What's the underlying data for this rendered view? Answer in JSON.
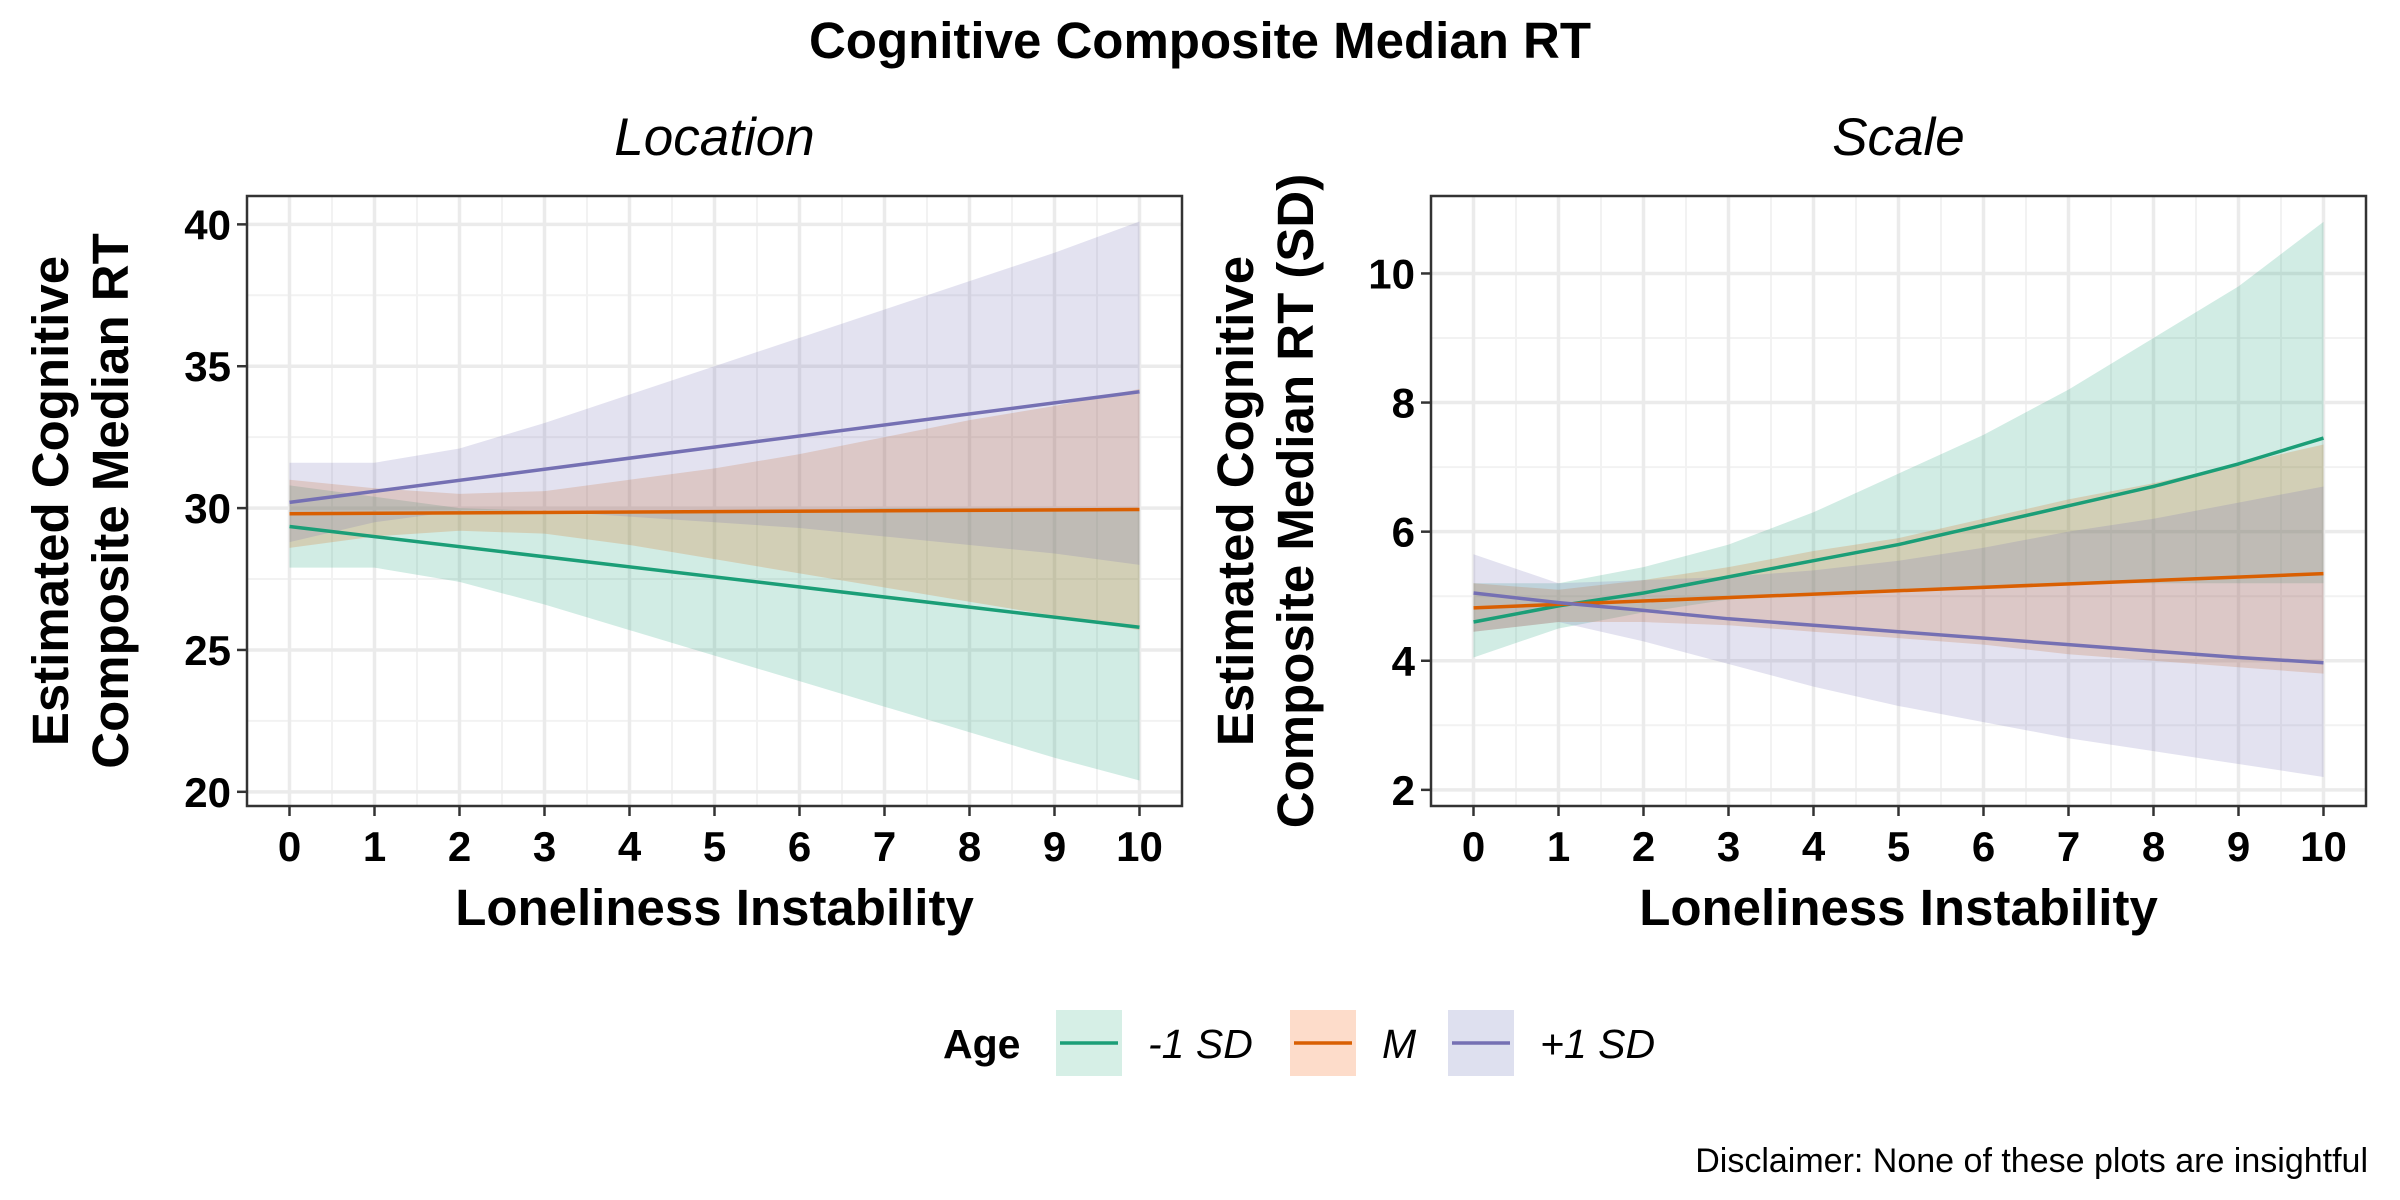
{
  "title": "Cognitive Composite Median RT",
  "caption": "Disclaimer: None of these plots are insightful",
  "legend": {
    "title": "Age",
    "position": "bottom",
    "entries": [
      {
        "label": "-1 SD",
        "line_color": "#1B9E77",
        "fill_color": "#D6EFE6"
      },
      {
        "label": "M",
        "line_color": "#D95F02",
        "fill_color": "#FDDCCA"
      },
      {
        "label": "+1 SD",
        "line_color": "#7570B3",
        "fill_color": "#DEE0EF"
      }
    ]
  },
  "chart_data": [
    {
      "type": "line",
      "facet": "Location",
      "xlabel": "Loneliness Instability",
      "ylabel_lines": [
        "Estimated Cognitive",
        "Composite Median RT"
      ],
      "xlim": [
        -0.5,
        10.5
      ],
      "ylim": [
        19.5,
        41.0
      ],
      "xticks": [
        0,
        1,
        2,
        3,
        4,
        5,
        6,
        7,
        8,
        9,
        10
      ],
      "yticks": [
        20,
        25,
        30,
        35,
        40
      ],
      "grid": true,
      "series": [
        {
          "name": "-1 SD",
          "x": [
            0,
            10
          ],
          "y": [
            29.35,
            25.8
          ],
          "ribbon": {
            "x": [
              0,
              1,
              2,
              3,
              4,
              5,
              6,
              7,
              8,
              9,
              10
            ],
            "lower": [
              27.9,
              27.9,
              27.4,
              26.6,
              25.7,
              24.8,
              23.9,
              23.0,
              22.1,
              21.2,
              20.4
            ],
            "upper": [
              30.8,
              30.4,
              30.0,
              29.9,
              29.9,
              29.9,
              29.9,
              30.0,
              30.0,
              30.0,
              30.0
            ]
          }
        },
        {
          "name": "M",
          "x": [
            0,
            10
          ],
          "y": [
            29.8,
            29.95
          ],
          "ribbon": {
            "x": [
              0,
              1,
              2,
              3,
              4,
              5,
              6,
              7,
              8,
              9,
              10
            ],
            "lower": [
              28.6,
              29.0,
              29.2,
              29.1,
              28.7,
              28.2,
              27.7,
              27.2,
              26.7,
              26.2,
              25.7
            ],
            "upper": [
              31.0,
              30.7,
              30.5,
              30.6,
              31.0,
              31.4,
              31.9,
              32.5,
              33.1,
              33.6,
              34.2
            ]
          }
        },
        {
          "name": "+1 SD",
          "x": [
            0,
            10
          ],
          "y": [
            30.2,
            34.1
          ],
          "ribbon": {
            "x": [
              0,
              1,
              2,
              3,
              4,
              5,
              6,
              7,
              8,
              9,
              10
            ],
            "lower": [
              28.8,
              29.5,
              29.9,
              29.9,
              29.7,
              29.5,
              29.3,
              29.0,
              28.7,
              28.4,
              28.0
            ],
            "upper": [
              31.6,
              31.6,
              32.1,
              33.0,
              34.0,
              35.0,
              36.0,
              37.0,
              38.0,
              39.0,
              40.1
            ]
          }
        }
      ]
    },
    {
      "type": "line",
      "facet": "Scale",
      "xlabel": "Loneliness Instability",
      "ylabel_lines": [
        "Estimated Cognitive",
        "Composite Median RT (SD)"
      ],
      "xlim": [
        -0.5,
        10.5
      ],
      "ylim": [
        1.75,
        11.2
      ],
      "xticks": [
        0,
        1,
        2,
        3,
        4,
        5,
        6,
        7,
        8,
        9,
        10
      ],
      "yticks": [
        2,
        4,
        6,
        8,
        10
      ],
      "grid": true,
      "series": [
        {
          "name": "-1 SD",
          "x": [
            0,
            1,
            2,
            3,
            4,
            5,
            6,
            7,
            8,
            9,
            10
          ],
          "y": [
            4.6,
            4.85,
            5.05,
            5.3,
            5.55,
            5.8,
            6.1,
            6.4,
            6.7,
            7.05,
            7.45
          ],
          "ribbon": {
            "x": [
              0,
              1,
              2,
              3,
              4,
              5,
              6,
              7,
              8,
              9,
              10
            ],
            "lower": [
              4.05,
              4.5,
              4.75,
              4.95,
              5.05,
              5.1,
              5.15,
              5.2,
              5.2,
              5.2,
              5.2
            ],
            "upper": [
              5.2,
              5.2,
              5.45,
              5.8,
              6.3,
              6.9,
              7.5,
              8.2,
              9.0,
              9.8,
              10.8
            ]
          }
        },
        {
          "name": "M",
          "x": [
            0,
            10
          ],
          "y": [
            4.82,
            5.35
          ],
          "ribbon": {
            "x": [
              0,
              1,
              2,
              3,
              4,
              5,
              6,
              7,
              8,
              9,
              10
            ],
            "lower": [
              4.45,
              4.6,
              4.6,
              4.55,
              4.45,
              4.35,
              4.25,
              4.1,
              4.0,
              3.9,
              3.8
            ],
            "upper": [
              5.2,
              5.1,
              5.25,
              5.45,
              5.7,
              5.9,
              6.2,
              6.5,
              6.75,
              7.05,
              7.35
            ]
          }
        },
        {
          "name": "+1 SD",
          "x": [
            0,
            1,
            2,
            3,
            4,
            5,
            6,
            7,
            8,
            9,
            10
          ],
          "y": [
            5.05,
            4.9,
            4.78,
            4.65,
            4.55,
            4.45,
            4.35,
            4.25,
            4.15,
            4.05,
            3.97
          ],
          "ribbon": {
            "x": [
              0,
              1,
              2,
              3,
              4,
              5,
              6,
              7,
              8,
              9,
              10
            ],
            "lower": [
              4.45,
              4.6,
              4.3,
              3.95,
              3.6,
              3.3,
              3.05,
              2.8,
              2.6,
              2.4,
              2.2
            ],
            "upper": [
              5.65,
              5.2,
              5.25,
              5.3,
              5.4,
              5.55,
              5.75,
              6.0,
              6.2,
              6.45,
              6.7
            ]
          }
        }
      ]
    }
  ]
}
